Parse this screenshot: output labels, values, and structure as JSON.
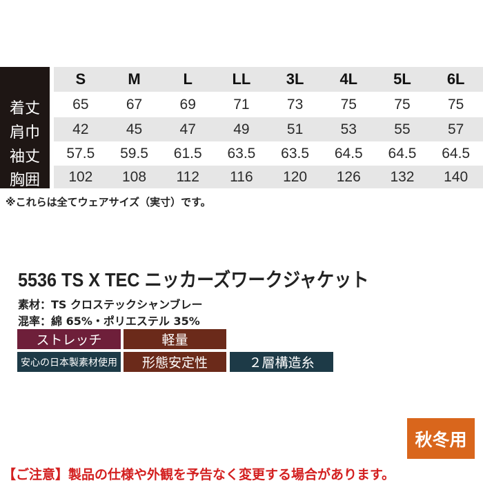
{
  "size_table": {
    "sizes": [
      "S",
      "M",
      "L",
      "LL",
      "3L",
      "4L",
      "5L",
      "6L"
    ],
    "rows": [
      {
        "label": "着丈",
        "values": [
          "65",
          "67",
          "69",
          "71",
          "73",
          "75",
          "75",
          "75"
        ]
      },
      {
        "label": "肩巾",
        "values": [
          "42",
          "45",
          "47",
          "49",
          "51",
          "53",
          "55",
          "57"
        ]
      },
      {
        "label": "袖丈",
        "values": [
          "57.5",
          "59.5",
          "61.5",
          "63.5",
          "63.5",
          "64.5",
          "64.5",
          "64.5"
        ]
      },
      {
        "label": "胸囲",
        "values": [
          "102",
          "108",
          "112",
          "116",
          "120",
          "126",
          "132",
          "140"
        ]
      }
    ],
    "note": "※これらは全てウェアサイズ（実寸）です。"
  },
  "product": {
    "title": "5536  TS X TEC ニッカーズワークジャケット",
    "material": "素材：TS クロステックシャンブレー",
    "blend": "混率：綿 65%・ポリエステル 35%"
  },
  "badges": [
    {
      "label": "ストレッチ",
      "color": "#6e1f3a"
    },
    {
      "label": "軽量",
      "color": "#6b2a1a"
    },
    {
      "label": "安心の日本製素材使用",
      "color": "#1d3a47"
    },
    {
      "label": "形態安定性",
      "color": "#6b2a1a"
    },
    {
      "label": "２層構造糸",
      "color": "#1d3a47"
    }
  ],
  "season": {
    "label": "秋冬用",
    "color": "#d9661c"
  },
  "caution": "【ご注意】製品の仕様や外観を予告なく変更する場合があります。"
}
